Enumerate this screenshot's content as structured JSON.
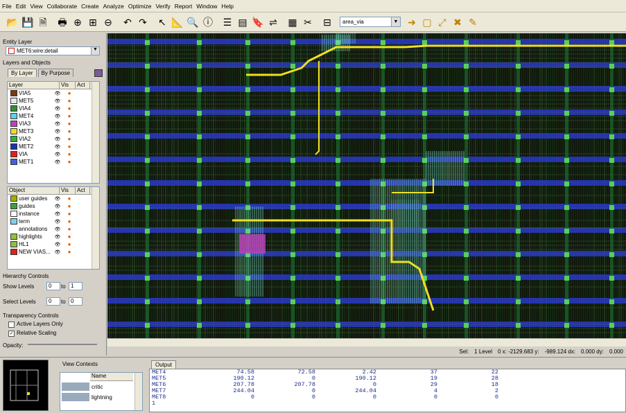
{
  "menu": [
    "File",
    "Edit",
    "View",
    "Collaborate",
    "Create",
    "Analyze",
    "Optimize",
    "Verify",
    "Report",
    "Window",
    "Help"
  ],
  "toolbar": {
    "icons": [
      "folder-open-icon",
      "save-icon",
      "save-as-icon",
      "print-icon",
      "zoom-in-icon",
      "zoom-fit-icon",
      "zoom-out-icon",
      "undo-icon",
      "redo-icon",
      "select-icon",
      "ruler-icon",
      "find-icon",
      "info-icon",
      "layers-icon",
      "properties-icon",
      "bookmark-icon",
      "route-icon",
      "grid-icon",
      "tool-icon",
      "hierarchy-icon"
    ],
    "combo_value": "area_via",
    "right_icons": [
      "move-icon",
      "copy-icon",
      "stretch-icon",
      "delete-icon",
      "note-icon"
    ]
  },
  "left": {
    "entity_layer_label": "Entity Layer",
    "entity_layer_value": "MET6:wire:detail",
    "layers_objects_label": "Layers and Objects",
    "tab_by_layer": "By Layer",
    "tab_by_purpose": "By Purpose",
    "layer_headers": [
      "Layer",
      "Vis",
      "Act"
    ],
    "layers": [
      {
        "name": "VIA5",
        "color": "#7a3a0c"
      },
      {
        "name": "MET5",
        "color": "#e8e8e8"
      },
      {
        "name": "VIA4",
        "color": "#2f8f2f"
      },
      {
        "name": "MET4",
        "color": "#5fd0e0"
      },
      {
        "name": "VIA3",
        "color": "#c040c0"
      },
      {
        "name": "MET3",
        "color": "#e8e020"
      },
      {
        "name": "VIA2",
        "color": "#30b040"
      },
      {
        "name": "MET2",
        "color": "#2030b0"
      },
      {
        "name": "VIA",
        "color": "#e02020"
      },
      {
        "name": "MET1",
        "color": "#4060e0"
      }
    ],
    "object_headers": [
      "Object",
      "Vis",
      "Act"
    ],
    "objects": [
      {
        "name": "user guides",
        "color": "#a0b000"
      },
      {
        "name": "guides",
        "color": "#40a040"
      },
      {
        "name": "instance",
        "color": "#ffffff"
      },
      {
        "name": "term",
        "color": "#80d0f0"
      },
      {
        "name": "annotations",
        "color": "none"
      },
      {
        "name": "highlights",
        "color": "#90c040"
      },
      {
        "name": "HL1",
        "color": "#90c040"
      },
      {
        "name": "NEW VIAS...",
        "color": "#e02020"
      }
    ],
    "hierarchy_label": "Hierarchy Controls",
    "show_levels_label": "Show Levels",
    "select_levels_label": "Select Levels",
    "show_from": "0",
    "show_to": "1",
    "select_from": "0",
    "select_to": "0",
    "to_label": "to",
    "transparency_label": "Transparency Controls",
    "active_layers_only": "Active Layers Only",
    "relative_scaling": "Relative Scaling",
    "opacity_label": "Opacity:"
  },
  "status": {
    "sel": "Sel:",
    "level": "1 Level",
    "x": "0 x:  -2129.683 y:",
    "y": "-989.124 dx:",
    "dx": "0.000 dy:",
    "dy": "0.000"
  },
  "bottom": {
    "view_contexts": "View Contexts",
    "name_header": "Name",
    "contexts": [
      "critic",
      "lightning"
    ],
    "output_tab": "Output",
    "output_rows": [
      [
        "MET4",
        "74.58",
        "72.58",
        "2.42",
        "37",
        "22"
      ],
      [
        "MET5",
        "190.12",
        "0",
        "190.12",
        "19",
        "28"
      ],
      [
        "MET6",
        "207.78",
        "207.78",
        "0",
        "29",
        "18"
      ],
      [
        "MET7",
        "244.04",
        "0",
        "244.04",
        "4",
        "2"
      ],
      [
        "MET8",
        "0",
        "0",
        "0",
        "0",
        "0"
      ],
      [
        "1",
        "",
        "",
        "",
        "",
        ""
      ]
    ]
  },
  "colors": {
    "canvas_bg": "#0b1208",
    "met_blue": "#2a3ac8",
    "met_yellow": "#f0e020",
    "grid_green": "#58d058",
    "cyan": "#7ee0d0"
  }
}
